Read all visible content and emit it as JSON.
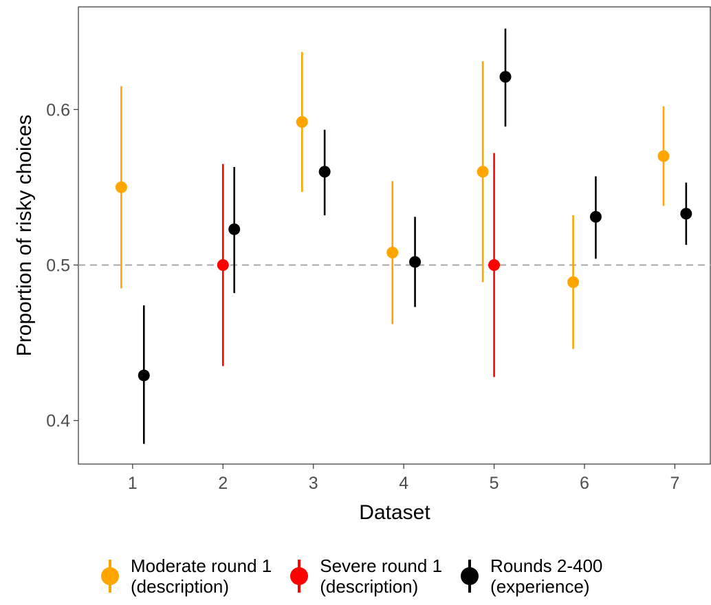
{
  "chart_data": {
    "type": "scatter",
    "xlabel": "Dataset",
    "ylabel": "Proportion of risky choices",
    "categories": [
      "1",
      "2",
      "3",
      "4",
      "5",
      "6",
      "7"
    ],
    "xlim": [
      0.4,
      7.4
    ],
    "ylim": [
      0.372,
      0.666
    ],
    "y_ticks": [
      "0.4",
      "0.5",
      "0.6"
    ],
    "reference_line": {
      "y": 0.5,
      "style": "dashed",
      "color": "#a6a6a6"
    },
    "grid": false,
    "legend_position": "bottom",
    "series": [
      {
        "name": "Moderate round 1\n(description)",
        "color": "#FFA500",
        "points": [
          {
            "x": 1,
            "y": 0.55,
            "lo": 0.485,
            "hi": 0.615
          },
          {
            "x": 3,
            "y": 0.592,
            "lo": 0.547,
            "hi": 0.637
          },
          {
            "x": 4,
            "y": 0.508,
            "lo": 0.462,
            "hi": 0.554
          },
          {
            "x": 5,
            "y": 0.56,
            "lo": 0.489,
            "hi": 0.631
          },
          {
            "x": 6,
            "y": 0.489,
            "lo": 0.446,
            "hi": 0.532
          },
          {
            "x": 7,
            "y": 0.57,
            "lo": 0.538,
            "hi": 0.602
          }
        ]
      },
      {
        "name": "Severe round 1\n(description)",
        "color": "#FF0000",
        "points": [
          {
            "x": 2,
            "y": 0.5,
            "lo": 0.435,
            "hi": 0.565
          },
          {
            "x": 5,
            "y": 0.5,
            "lo": 0.428,
            "hi": 0.572
          }
        ]
      },
      {
        "name": "Rounds 2-400\n(experience)",
        "color": "#000000",
        "points": [
          {
            "x": 1,
            "y": 0.429,
            "lo": 0.385,
            "hi": 0.474
          },
          {
            "x": 2,
            "y": 0.523,
            "lo": 0.482,
            "hi": 0.563
          },
          {
            "x": 3,
            "y": 0.56,
            "lo": 0.532,
            "hi": 0.587
          },
          {
            "x": 4,
            "y": 0.502,
            "lo": 0.473,
            "hi": 0.531
          },
          {
            "x": 5,
            "y": 0.621,
            "lo": 0.589,
            "hi": 0.652
          },
          {
            "x": 6,
            "y": 0.531,
            "lo": 0.504,
            "hi": 0.557
          },
          {
            "x": 7,
            "y": 0.533,
            "lo": 0.513,
            "hi": 0.553
          }
        ]
      }
    ]
  }
}
